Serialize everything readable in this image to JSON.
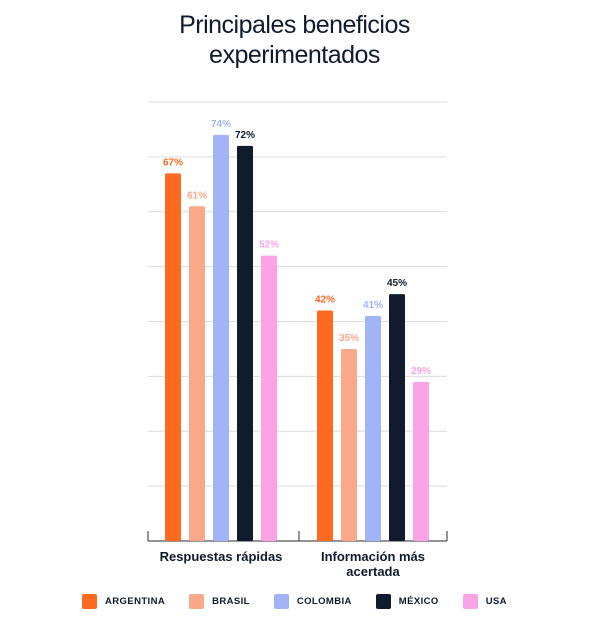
{
  "chart_data": {
    "type": "bar",
    "title_lines": [
      "Principales beneficios",
      "experimentados"
    ],
    "categories": [
      [
        "Respuestas rápidas"
      ],
      [
        "Información más",
        "acertada"
      ]
    ],
    "series": [
      {
        "name": "ARGENTINA",
        "color": "#ff6a21",
        "values": [
          67,
          42
        ],
        "labels": [
          "67%",
          "42%"
        ]
      },
      {
        "name": "BRASIL",
        "color": "#f9a88a",
        "values": [
          61,
          35
        ],
        "labels": [
          "61%",
          "35%"
        ]
      },
      {
        "name": "COLOMBIA",
        "color": "#a3b3f7",
        "values": [
          74,
          41
        ],
        "labels": [
          "74%",
          "41%"
        ]
      },
      {
        "name": "MÉXICO",
        "color": "#101b2d",
        "values": [
          72,
          45
        ],
        "labels": [
          "72%",
          "45%"
        ]
      },
      {
        "name": "USA",
        "color": "#fba3e6",
        "values": [
          52,
          29
        ],
        "labels": [
          "52%",
          "29%"
        ]
      }
    ],
    "ylim": [
      0,
      80
    ],
    "grid": true,
    "legend_position": "bottom"
  }
}
